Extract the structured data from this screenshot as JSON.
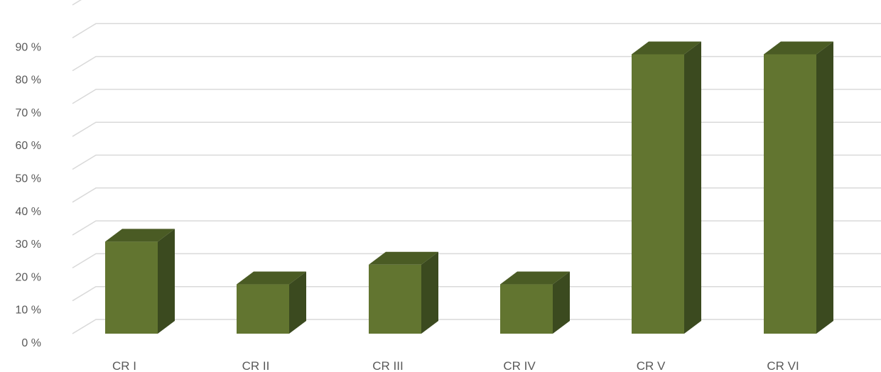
{
  "chart_data": {
    "type": "bar",
    "style": "3d-column",
    "categories": [
      "CR I",
      "CR II",
      "CR III",
      "CR IV",
      "CR V",
      "CR VI"
    ],
    "values": [
      0.28,
      0.15,
      0.21,
      0.15,
      0.85,
      0.85
    ],
    "yticks": [
      0,
      0.1,
      0.2,
      0.3,
      0.4,
      0.5,
      0.6,
      0.7,
      0.8,
      0.9,
      1.0
    ],
    "ytick_labels": [
      "0 %",
      "10 %",
      "20 %",
      "30 %",
      "40 %",
      "50 %",
      "60 %",
      "70 %",
      "80 %",
      "90 %",
      ""
    ],
    "ylim": [
      0,
      1.0
    ],
    "grid": true,
    "legend": "none",
    "title": "",
    "xlabel": "",
    "ylabel": ""
  },
  "colors": {
    "bar_front": "#627530",
    "bar_side": "#3B4A1F",
    "bar_top": "#4A5B24",
    "gridline": "#D9D9D9",
    "text": "#595959"
  }
}
